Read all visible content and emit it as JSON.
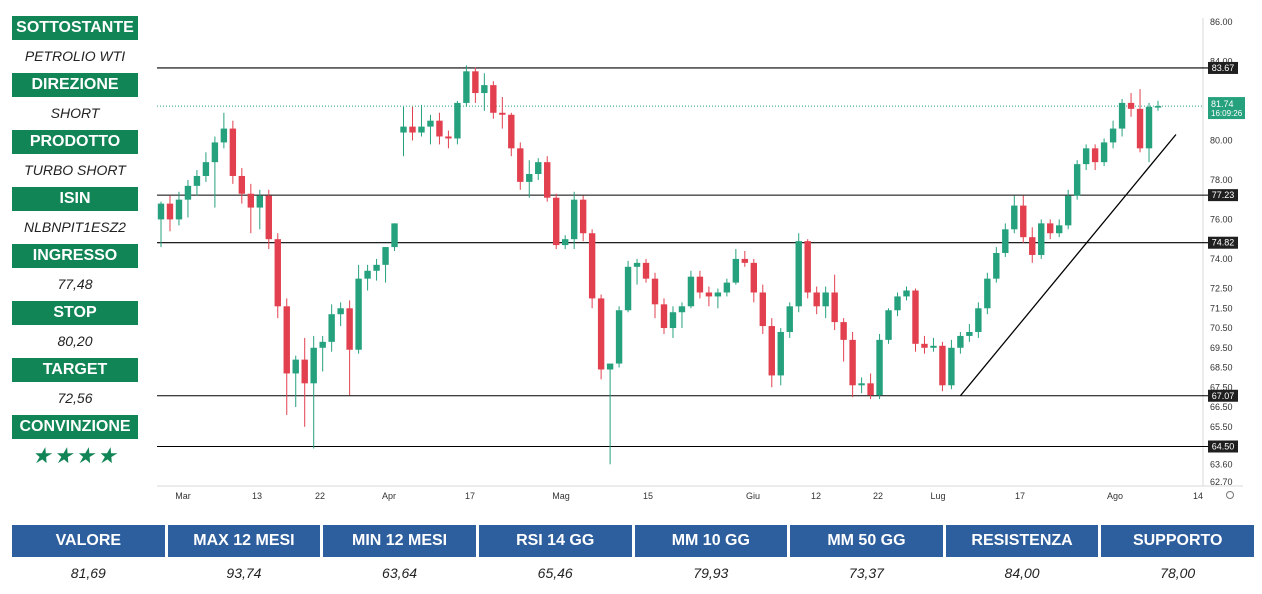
{
  "sidebar": {
    "items": [
      {
        "label": "SOTTOSTANTE",
        "value": "PETROLIO WTI"
      },
      {
        "label": "DIREZIONE",
        "value": "SHORT"
      },
      {
        "label": "PRODOTTO",
        "value": "TURBO SHORT"
      },
      {
        "label": "ISIN",
        "value": "NLBNPIT1ESZ2"
      },
      {
        "label": "INGRESSO",
        "value": "77,48"
      },
      {
        "label": "STOP",
        "value": "80,20"
      },
      {
        "label": "TARGET",
        "value": "72,56"
      },
      {
        "label": "CONVINZIONE",
        "value": "★★★★"
      }
    ]
  },
  "colors": {
    "green_label": "#128556",
    "blue_header": "#2d5e9e",
    "candle_up": "#26a17e",
    "candle_down": "#e2404f",
    "price_label_bg": "#26a17e"
  },
  "chart_data": {
    "type": "candlestick",
    "x_tick_labels": [
      "Mar",
      "13",
      "22",
      "Apr",
      "17",
      "Mag",
      "15",
      "Giu",
      "12",
      "22",
      "Lug",
      "17",
      "Ago",
      "14"
    ],
    "y_tick_labels": [
      "86.00",
      "84.00",
      "82.00",
      "80.00",
      "78.00",
      "76.00",
      "74.00",
      "72.50",
      "71.50",
      "70.50",
      "69.50",
      "68.50",
      "67.50",
      "66.50",
      "65.50",
      "63.60",
      "62.70"
    ],
    "horizontal_levels": [
      83.67,
      77.23,
      74.82,
      67.07,
      64.5
    ],
    "horizontal_level_labels": [
      "83.67",
      "77.23",
      "74.82",
      "67.07",
      "64.50"
    ],
    "current_price": "81.74",
    "countdown": "16:09:26",
    "trendline": {
      "from": {
        "x": "late Giu",
        "y": 67.07
      },
      "to": {
        "x": "Ago",
        "y": 80.3
      }
    },
    "candles": [
      {
        "o": 76.0,
        "h": 76.9,
        "l": 74.6,
        "c": 76.8
      },
      {
        "o": 76.8,
        "h": 77.2,
        "l": 75.4,
        "c": 76.0
      },
      {
        "o": 76.0,
        "h": 77.4,
        "l": 75.7,
        "c": 77.0
      },
      {
        "o": 77.0,
        "h": 78.0,
        "l": 76.1,
        "c": 77.7
      },
      {
        "o": 77.7,
        "h": 78.5,
        "l": 77.2,
        "c": 78.2
      },
      {
        "o": 78.2,
        "h": 79.4,
        "l": 77.9,
        "c": 78.9
      },
      {
        "o": 78.9,
        "h": 80.2,
        "l": 76.6,
        "c": 79.9
      },
      {
        "o": 79.9,
        "h": 81.4,
        "l": 79.6,
        "c": 80.6
      },
      {
        "o": 80.6,
        "h": 81.0,
        "l": 77.8,
        "c": 78.2
      },
      {
        "o": 78.2,
        "h": 78.6,
        "l": 76.8,
        "c": 77.3
      },
      {
        "o": 77.3,
        "h": 77.8,
        "l": 75.3,
        "c": 76.6
      },
      {
        "o": 76.6,
        "h": 77.5,
        "l": 75.5,
        "c": 77.2
      },
      {
        "o": 77.2,
        "h": 77.5,
        "l": 74.5,
        "c": 75.0
      },
      {
        "o": 75.0,
        "h": 75.3,
        "l": 71.0,
        "c": 71.6
      },
      {
        "o": 71.6,
        "h": 72.0,
        "l": 66.1,
        "c": 68.2
      },
      {
        "o": 68.2,
        "h": 69.1,
        "l": 66.5,
        "c": 68.9
      },
      {
        "o": 68.9,
        "h": 70.0,
        "l": 65.5,
        "c": 67.7
      },
      {
        "o": 67.7,
        "h": 70.1,
        "l": 64.4,
        "c": 69.5
      },
      {
        "o": 69.5,
        "h": 70.1,
        "l": 68.3,
        "c": 69.8
      },
      {
        "o": 69.8,
        "h": 71.7,
        "l": 69.3,
        "c": 71.2
      },
      {
        "o": 71.2,
        "h": 71.8,
        "l": 70.6,
        "c": 71.5
      },
      {
        "o": 71.5,
        "h": 71.9,
        "l": 67.1,
        "c": 69.4
      },
      {
        "o": 69.4,
        "h": 73.7,
        "l": 69.2,
        "c": 73.0
      },
      {
        "o": 73.0,
        "h": 73.7,
        "l": 72.4,
        "c": 73.4
      },
      {
        "o": 73.4,
        "h": 74.0,
        "l": 72.9,
        "c": 73.7
      },
      {
        "o": 73.7,
        "h": 74.6,
        "l": 72.8,
        "c": 74.6
      },
      {
        "o": 74.6,
        "h": 75.8,
        "l": 74.4,
        "c": 75.8
      },
      {
        "o": 80.4,
        "h": 81.7,
        "l": 79.2,
        "c": 80.7
      },
      {
        "o": 80.7,
        "h": 81.7,
        "l": 80.0,
        "c": 80.4
      },
      {
        "o": 80.4,
        "h": 81.8,
        "l": 80.2,
        "c": 80.7
      },
      {
        "o": 80.7,
        "h": 81.3,
        "l": 79.8,
        "c": 81.0
      },
      {
        "o": 81.0,
        "h": 81.4,
        "l": 79.8,
        "c": 80.2
      },
      {
        "o": 80.2,
        "h": 80.5,
        "l": 79.6,
        "c": 80.1
      },
      {
        "o": 80.1,
        "h": 82.0,
        "l": 79.8,
        "c": 81.9
      },
      {
        "o": 81.9,
        "h": 83.8,
        "l": 81.7,
        "c": 83.5
      },
      {
        "o": 83.5,
        "h": 83.7,
        "l": 81.9,
        "c": 82.4
      },
      {
        "o": 82.4,
        "h": 83.4,
        "l": 81.5,
        "c": 82.8
      },
      {
        "o": 82.8,
        "h": 83.0,
        "l": 81.1,
        "c": 81.4
      },
      {
        "o": 81.4,
        "h": 82.2,
        "l": 80.6,
        "c": 81.3
      },
      {
        "o": 81.3,
        "h": 81.4,
        "l": 79.2,
        "c": 79.6
      },
      {
        "o": 79.6,
        "h": 79.9,
        "l": 77.5,
        "c": 77.9
      },
      {
        "o": 77.9,
        "h": 79.0,
        "l": 77.1,
        "c": 78.3
      },
      {
        "o": 78.3,
        "h": 79.1,
        "l": 78.0,
        "c": 78.9
      },
      {
        "o": 78.9,
        "h": 79.2,
        "l": 76.9,
        "c": 77.1
      },
      {
        "o": 77.1,
        "h": 77.3,
        "l": 74.5,
        "c": 74.7
      },
      {
        "o": 74.7,
        "h": 75.2,
        "l": 74.5,
        "c": 75.0
      },
      {
        "o": 75.0,
        "h": 77.4,
        "l": 74.5,
        "c": 77.0
      },
      {
        "o": 77.0,
        "h": 77.2,
        "l": 74.9,
        "c": 75.3
      },
      {
        "o": 75.3,
        "h": 75.5,
        "l": 71.5,
        "c": 72.0
      },
      {
        "o": 72.0,
        "h": 72.2,
        "l": 67.9,
        "c": 68.4
      },
      {
        "o": 68.4,
        "h": 68.5,
        "l": 63.6,
        "c": 68.7
      },
      {
        "o": 68.7,
        "h": 71.6,
        "l": 68.5,
        "c": 71.4
      },
      {
        "o": 71.4,
        "h": 73.9,
        "l": 71.3,
        "c": 73.6
      },
      {
        "o": 73.6,
        "h": 74.0,
        "l": 72.7,
        "c": 73.8
      },
      {
        "o": 73.8,
        "h": 74.0,
        "l": 72.8,
        "c": 73.0
      },
      {
        "o": 73.0,
        "h": 73.3,
        "l": 71.0,
        "c": 71.7
      },
      {
        "o": 71.7,
        "h": 72.0,
        "l": 70.2,
        "c": 70.5
      },
      {
        "o": 70.5,
        "h": 71.6,
        "l": 70.0,
        "c": 71.3
      },
      {
        "o": 71.3,
        "h": 71.8,
        "l": 70.5,
        "c": 71.6
      },
      {
        "o": 71.6,
        "h": 73.4,
        "l": 71.5,
        "c": 73.1
      },
      {
        "o": 73.1,
        "h": 73.4,
        "l": 72.0,
        "c": 72.3
      },
      {
        "o": 72.3,
        "h": 72.6,
        "l": 71.6,
        "c": 72.1
      },
      {
        "o": 72.1,
        "h": 72.5,
        "l": 71.5,
        "c": 72.3
      },
      {
        "o": 72.3,
        "h": 73.0,
        "l": 72.1,
        "c": 72.8
      },
      {
        "o": 72.8,
        "h": 74.5,
        "l": 72.7,
        "c": 74.0
      },
      {
        "o": 74.0,
        "h": 74.4,
        "l": 73.6,
        "c": 73.8
      },
      {
        "o": 73.8,
        "h": 74.0,
        "l": 71.8,
        "c": 72.3
      },
      {
        "o": 72.3,
        "h": 72.7,
        "l": 70.2,
        "c": 70.6
      },
      {
        "o": 70.6,
        "h": 71.0,
        "l": 67.5,
        "c": 68.1
      },
      {
        "o": 68.1,
        "h": 70.5,
        "l": 67.6,
        "c": 70.3
      },
      {
        "o": 70.3,
        "h": 71.8,
        "l": 70.0,
        "c": 71.6
      },
      {
        "o": 71.6,
        "h": 75.3,
        "l": 71.3,
        "c": 74.9
      },
      {
        "o": 74.9,
        "h": 75.0,
        "l": 72.0,
        "c": 72.3
      },
      {
        "o": 72.3,
        "h": 72.6,
        "l": 71.2,
        "c": 71.6
      },
      {
        "o": 71.6,
        "h": 72.6,
        "l": 71.0,
        "c": 72.3
      },
      {
        "o": 72.3,
        "h": 73.2,
        "l": 70.4,
        "c": 70.8
      },
      {
        "o": 70.8,
        "h": 71.0,
        "l": 68.8,
        "c": 69.9
      },
      {
        "o": 69.9,
        "h": 70.3,
        "l": 67.0,
        "c": 67.6
      },
      {
        "o": 67.6,
        "h": 68.0,
        "l": 67.2,
        "c": 67.7
      },
      {
        "o": 67.7,
        "h": 68.2,
        "l": 66.9,
        "c": 67.1
      },
      {
        "o": 67.1,
        "h": 70.2,
        "l": 66.9,
        "c": 69.9
      },
      {
        "o": 69.9,
        "h": 71.5,
        "l": 69.7,
        "c": 71.4
      },
      {
        "o": 71.4,
        "h": 72.3,
        "l": 71.1,
        "c": 72.1
      },
      {
        "o": 72.1,
        "h": 72.6,
        "l": 71.9,
        "c": 72.4
      },
      {
        "o": 72.4,
        "h": 72.5,
        "l": 69.3,
        "c": 69.7
      },
      {
        "o": 69.7,
        "h": 70.1,
        "l": 69.2,
        "c": 69.5
      },
      {
        "o": 69.5,
        "h": 70.0,
        "l": 69.3,
        "c": 69.6
      },
      {
        "o": 69.6,
        "h": 69.8,
        "l": 67.3,
        "c": 67.6
      },
      {
        "o": 67.6,
        "h": 69.9,
        "l": 67.4,
        "c": 69.5
      },
      {
        "o": 69.5,
        "h": 70.3,
        "l": 69.2,
        "c": 70.1
      },
      {
        "o": 70.1,
        "h": 70.7,
        "l": 69.8,
        "c": 70.3
      },
      {
        "o": 70.3,
        "h": 71.8,
        "l": 70.0,
        "c": 71.5
      },
      {
        "o": 71.5,
        "h": 73.3,
        "l": 71.2,
        "c": 73.0
      },
      {
        "o": 73.0,
        "h": 74.6,
        "l": 72.8,
        "c": 74.3
      },
      {
        "o": 74.3,
        "h": 75.8,
        "l": 74.1,
        "c": 75.5
      },
      {
        "o": 75.5,
        "h": 77.2,
        "l": 75.3,
        "c": 76.7
      },
      {
        "o": 76.7,
        "h": 77.2,
        "l": 74.8,
        "c": 75.1
      },
      {
        "o": 75.1,
        "h": 75.6,
        "l": 73.8,
        "c": 74.2
      },
      {
        "o": 74.2,
        "h": 76.0,
        "l": 74.0,
        "c": 75.8
      },
      {
        "o": 75.8,
        "h": 76.0,
        "l": 75.0,
        "c": 75.3
      },
      {
        "o": 75.3,
        "h": 76.0,
        "l": 75.1,
        "c": 75.7
      },
      {
        "o": 75.7,
        "h": 77.5,
        "l": 75.5,
        "c": 77.2
      },
      {
        "o": 77.2,
        "h": 79.0,
        "l": 77.0,
        "c": 78.8
      },
      {
        "o": 78.8,
        "h": 79.8,
        "l": 78.5,
        "c": 79.6
      },
      {
        "o": 79.6,
        "h": 79.8,
        "l": 78.5,
        "c": 78.9
      },
      {
        "o": 78.9,
        "h": 80.1,
        "l": 78.7,
        "c": 79.9
      },
      {
        "o": 79.9,
        "h": 81.0,
        "l": 79.6,
        "c": 80.6
      },
      {
        "o": 80.6,
        "h": 82.1,
        "l": 80.2,
        "c": 81.9
      },
      {
        "o": 81.9,
        "h": 82.4,
        "l": 81.2,
        "c": 81.6
      },
      {
        "o": 81.6,
        "h": 82.6,
        "l": 79.4,
        "c": 79.6
      },
      {
        "o": 79.6,
        "h": 81.9,
        "l": 78.9,
        "c": 81.7
      },
      {
        "o": 81.7,
        "h": 82.0,
        "l": 81.5,
        "c": 81.74
      }
    ]
  },
  "stats": {
    "headers": [
      "VALORE",
      "MAX 12 MESI",
      "MIN 12 MESI",
      "RSI 14 GG",
      "MM 10 GG",
      "MM 50 GG",
      "RESISTENZA",
      "SUPPORTO"
    ],
    "values": [
      "81,69",
      "93,74",
      "63,64",
      "65,46",
      "79,93",
      "73,37",
      "84,00",
      "78,00"
    ]
  }
}
